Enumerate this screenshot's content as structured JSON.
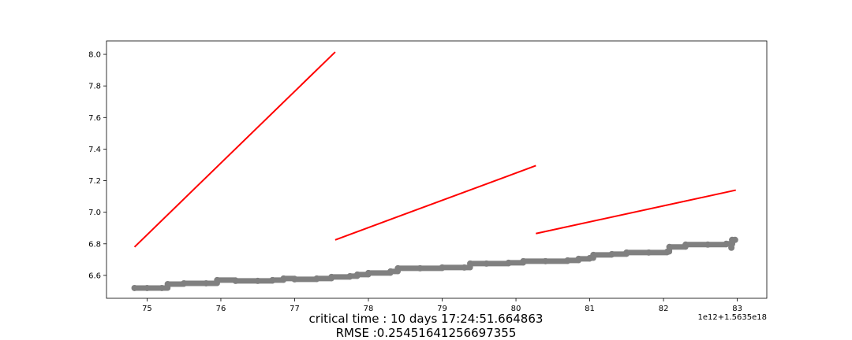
{
  "chart_data": {
    "type": "line",
    "title": "",
    "xlabel": "",
    "ylabel": "",
    "x_offset_label": "1e12+1.5635e18",
    "xlim": [
      74.45,
      83.4
    ],
    "ylim": [
      6.455,
      8.085
    ],
    "x_ticks": [
      75,
      76,
      77,
      78,
      79,
      80,
      81,
      82,
      83
    ],
    "x_tick_labels": [
      "75",
      "76",
      "77",
      "78",
      "79",
      "80",
      "81",
      "82",
      "83"
    ],
    "y_ticks": [
      6.6,
      6.8,
      7.0,
      7.2,
      7.4,
      7.6,
      7.8,
      8.0
    ],
    "y_tick_labels": [
      "6.6",
      "6.8",
      "7.0",
      "7.2",
      "7.4",
      "7.6",
      "7.8",
      "8.0"
    ],
    "grid": false,
    "observed_series": {
      "color": "#808080",
      "marker": "circle",
      "points": [
        [
          74.83,
          6.52
        ],
        [
          75.0,
          6.52
        ],
        [
          75.2,
          6.52
        ],
        [
          75.28,
          6.545
        ],
        [
          75.5,
          6.55
        ],
        [
          75.8,
          6.55
        ],
        [
          75.95,
          6.57
        ],
        [
          76.2,
          6.565
        ],
        [
          76.5,
          6.565
        ],
        [
          76.7,
          6.57
        ],
        [
          76.85,
          6.58
        ],
        [
          77.0,
          6.575
        ],
        [
          77.3,
          6.58
        ],
        [
          77.5,
          6.59
        ],
        [
          77.75,
          6.595
        ],
        [
          77.85,
          6.605
        ],
        [
          78.0,
          6.615
        ],
        [
          78.3,
          6.625
        ],
        [
          78.4,
          6.645
        ],
        [
          78.7,
          6.645
        ],
        [
          79.0,
          6.65
        ],
        [
          79.3,
          6.65
        ],
        [
          79.38,
          6.675
        ],
        [
          79.6,
          6.675
        ],
        [
          79.9,
          6.68
        ],
        [
          80.1,
          6.69
        ],
        [
          80.4,
          6.69
        ],
        [
          80.7,
          6.695
        ],
        [
          80.85,
          6.705
        ],
        [
          81.0,
          6.71
        ],
        [
          81.05,
          6.73
        ],
        [
          81.3,
          6.735
        ],
        [
          81.5,
          6.745
        ],
        [
          81.8,
          6.745
        ],
        [
          82.05,
          6.75
        ],
        [
          82.08,
          6.78
        ],
        [
          82.3,
          6.795
        ],
        [
          82.6,
          6.795
        ],
        [
          82.85,
          6.8
        ],
        [
          82.93,
          6.8
        ],
        [
          82.93,
          6.825
        ],
        [
          82.97,
          6.825
        ]
      ],
      "outliers": [
        [
          82.92,
          6.775
        ]
      ]
    },
    "fit_series": [
      {
        "color": "#ff0000",
        "x": [
          74.83,
          77.55
        ],
        "y": [
          6.78,
          8.015
        ]
      },
      {
        "color": "#ff0000",
        "x": [
          77.55,
          80.27
        ],
        "y": [
          6.825,
          7.295
        ]
      },
      {
        "color": "#ff0000",
        "x": [
          80.27,
          82.98
        ],
        "y": [
          6.865,
          7.14
        ]
      }
    ]
  },
  "captions": {
    "critical_time": "critical time : 10 days 17:24:51.664863",
    "rmse": "RMSE :0.25451641256697355"
  }
}
